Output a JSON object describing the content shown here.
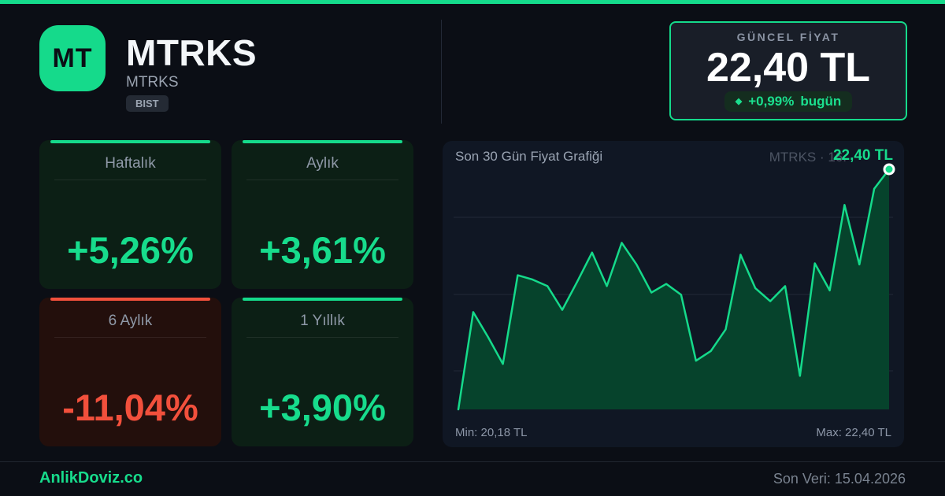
{
  "header": {
    "logo_text": "MT",
    "title": "MTRKS",
    "subtitle": "MTRKS",
    "exchange_badge": "BIST"
  },
  "price_box": {
    "label": "GÜNCEL FİYAT",
    "price": "22,40 TL",
    "change_icon": "◆",
    "change_value": "+0,99%",
    "change_suffix": "bugün"
  },
  "performance_cards": [
    {
      "label": "Haftalık",
      "value": "+5,26%",
      "trend": "up"
    },
    {
      "label": "Aylık",
      "value": "+3,61%",
      "trend": "up"
    },
    {
      "label": "6 Aylık",
      "value": "-11,04%",
      "trend": "down"
    },
    {
      "label": "1 Yıllık",
      "value": "+3,90%",
      "trend": "up"
    }
  ],
  "chart": {
    "title": "Son 30 Gün Fiyat Grafiği",
    "watermark": "MTRKS · 16.",
    "last_price_label": "22,40 TL",
    "min_label": "Min: 20,18 TL",
    "max_label": "Max: 22,40 TL"
  },
  "chart_data": {
    "type": "area",
    "title": "Son 30 Gün Fiyat Grafiği",
    "unit": "TL",
    "x": [
      1,
      2,
      3,
      4,
      5,
      6,
      7,
      8,
      9,
      10,
      11,
      12,
      13,
      14,
      15,
      16,
      17,
      18,
      19,
      20,
      21,
      22,
      23,
      24,
      25,
      26,
      27,
      28,
      29,
      30
    ],
    "values": [
      20.18,
      21.08,
      20.85,
      20.6,
      21.42,
      21.38,
      21.32,
      21.1,
      21.36,
      21.63,
      21.32,
      21.72,
      21.52,
      21.26,
      21.34,
      21.24,
      20.63,
      20.72,
      20.92,
      21.61,
      21.3,
      21.18,
      21.32,
      20.49,
      21.53,
      21.28,
      22.07,
      21.52,
      22.22,
      22.4
    ],
    "ylim": [
      20.18,
      22.4
    ],
    "min_value": "20,18 TL",
    "max_value": "22,40 TL",
    "last_value": "22,40 TL",
    "grid": "horizontal",
    "legend": "none",
    "end_marker": true
  },
  "footer": {
    "brand": "AnlikDoviz.co",
    "last_update": "Son Veri: 15.04.2026"
  },
  "colors": {
    "accent_green": "#15da8b",
    "value_green": "#17dc8c",
    "accent_red": "#f2503c",
    "chart_fill": "#06432c",
    "gridline": "#222a39",
    "background": "#0b0e15",
    "card_background": "#101724"
  }
}
